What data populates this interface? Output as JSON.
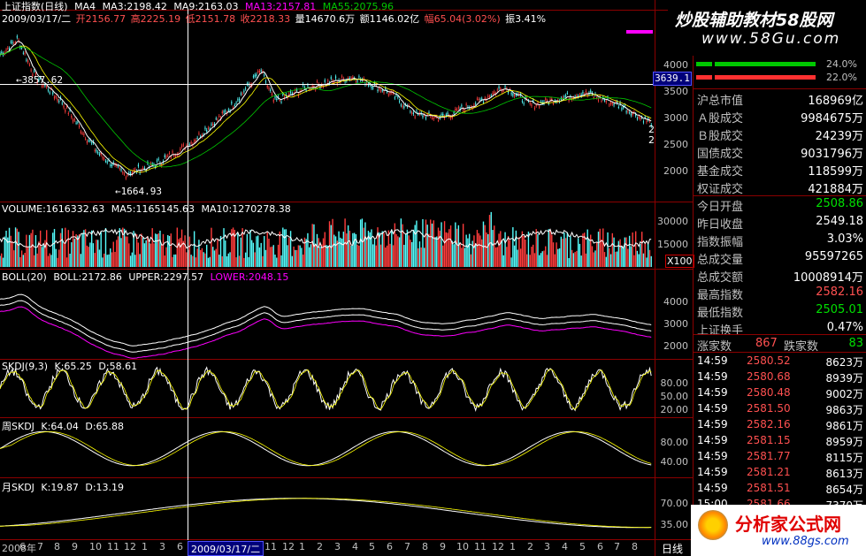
{
  "header": {
    "title": "上证指数(日线)",
    "ma_label": "MA4",
    "ma3": "MA3:2198.42",
    "ma9": "MA9:2163.03",
    "ma13": "MA13:2157.81",
    "ma55": "MA55:2075.96",
    "date": "2009/03/17/二",
    "open": "开2156.77",
    "high": "高2225.19",
    "low": "低2151.78",
    "close": "收2218.33",
    "vol": "量14670.6万",
    "amount": "额1146.02亿",
    "change": "幅65.04(3.02%)",
    "amp": "振3.41%"
  },
  "watermark": {
    "top_text": "炒股辅助教材58股网",
    "top_url": "www.58Gu.com",
    "bottom_text": "分析家公式网",
    "bottom_url": "www.88gs.com"
  },
  "main_panel": {
    "marker_high": "3857.62",
    "marker_low": "1664.93",
    "crosshair_value": "3639.1",
    "right_marks": [
      "2",
      "2"
    ],
    "y_ticks": [
      "4000",
      "3500",
      "3000",
      "2500",
      "2000"
    ]
  },
  "volume_panel": {
    "label": "VOLUME:1616332.63",
    "ma5": "MA5:1165145.63",
    "ma10": "MA10:1270278.38",
    "y_ticks": [
      "30000",
      "15000"
    ],
    "unit": "X100"
  },
  "boll_panel": {
    "label": "BOLL(20)",
    "boll": "BOLL:2172.86",
    "upper": "UPPER:2297.57",
    "lower": "LOWER:2048.15",
    "y_ticks": [
      "4000",
      "3000",
      "2000"
    ]
  },
  "skdj_panel": {
    "label": "SKDJ(9,3)",
    "k": "K:65.25",
    "d": "D:58.61",
    "y_ticks": [
      "80.00",
      "50.00",
      "20.00"
    ]
  },
  "wskdj_panel": {
    "label": "周SKDJ",
    "k": "K:64.04",
    "d": "D:65.88",
    "y_ticks": [
      "80.00",
      "40.00"
    ]
  },
  "mskdj_panel": {
    "label": "月SKDJ",
    "k": "K:19.87",
    "d": "D:13.19",
    "y_ticks": [
      "70.00",
      "35.00"
    ]
  },
  "x_axis": {
    "labels": [
      "2008年",
      "6",
      "7",
      "8",
      "9",
      "10",
      "11",
      "12",
      "1",
      "3",
      "6",
      "7",
      "8",
      "9",
      "10",
      "11",
      "12",
      "1",
      "2",
      "3",
      "4",
      "5",
      "6",
      "7",
      "8",
      "9",
      "10",
      "11",
      "12",
      "1",
      "2",
      "3",
      "4",
      "5",
      "6",
      "7",
      "8"
    ],
    "cursor_date": "2009/03/17/二",
    "period": "日线"
  },
  "right_panel": {
    "bar1_value": "24.0%",
    "bar2_value": "22.0%",
    "stats_a": [
      {
        "label": "沪总市值",
        "value": "168969亿"
      },
      {
        "label": "Ａ股成交",
        "value": "9984675万"
      },
      {
        "label": "Ｂ股成交",
        "value": "24239万"
      },
      {
        "label": "国债成交",
        "value": "9031796万"
      },
      {
        "label": "基金成交",
        "value": "118599万"
      },
      {
        "label": "权证成交",
        "value": "421884万"
      }
    ],
    "stats_b": [
      {
        "label": "今日开盘",
        "value": "2508.86"
      },
      {
        "label": "昨日收盘",
        "value": "2549.18"
      },
      {
        "label": "指数振幅",
        "value": "3.03%"
      },
      {
        "label": "总成交量",
        "value": "95597265"
      },
      {
        "label": "总成交额",
        "value": "10008914万"
      },
      {
        "label": "最高指数",
        "value": "2582.16"
      },
      {
        "label": "最低指数",
        "value": "2505.01"
      },
      {
        "label": "上证换手",
        "value": "0.47%"
      }
    ],
    "updown": {
      "up_label": "涨家数",
      "up_value": "867",
      "down_label": "跌家数",
      "down_value": "83"
    },
    "ticks": [
      {
        "time": "14:59",
        "price": "2580.52",
        "vol": "8623万"
      },
      {
        "time": "14:59",
        "price": "2580.68",
        "vol": "8939万"
      },
      {
        "time": "14:59",
        "price": "2580.48",
        "vol": "9002万"
      },
      {
        "time": "14:59",
        "price": "2581.50",
        "vol": "9863万"
      },
      {
        "time": "14:59",
        "price": "2582.16",
        "vol": "9861万"
      },
      {
        "time": "14:59",
        "price": "2581.15",
        "vol": "8959万"
      },
      {
        "time": "14:59",
        "price": "2581.77",
        "vol": "8115万"
      },
      {
        "time": "14:59",
        "price": "2581.21",
        "vol": "8613万"
      },
      {
        "time": "14:59",
        "price": "2581.51",
        "vol": "8654万"
      },
      {
        "time": "15:00",
        "price": "2581.66",
        "vol": "7370万"
      }
    ]
  },
  "colors": {
    "bg": "#000000",
    "grid": "#8b0000",
    "up": "#ff3c3c",
    "down": "#54fcfc",
    "ma_white": "#ffffff",
    "ma_yellow": "#ffff00",
    "ma_magenta": "#ff00ff",
    "ma_green": "#00c800"
  }
}
